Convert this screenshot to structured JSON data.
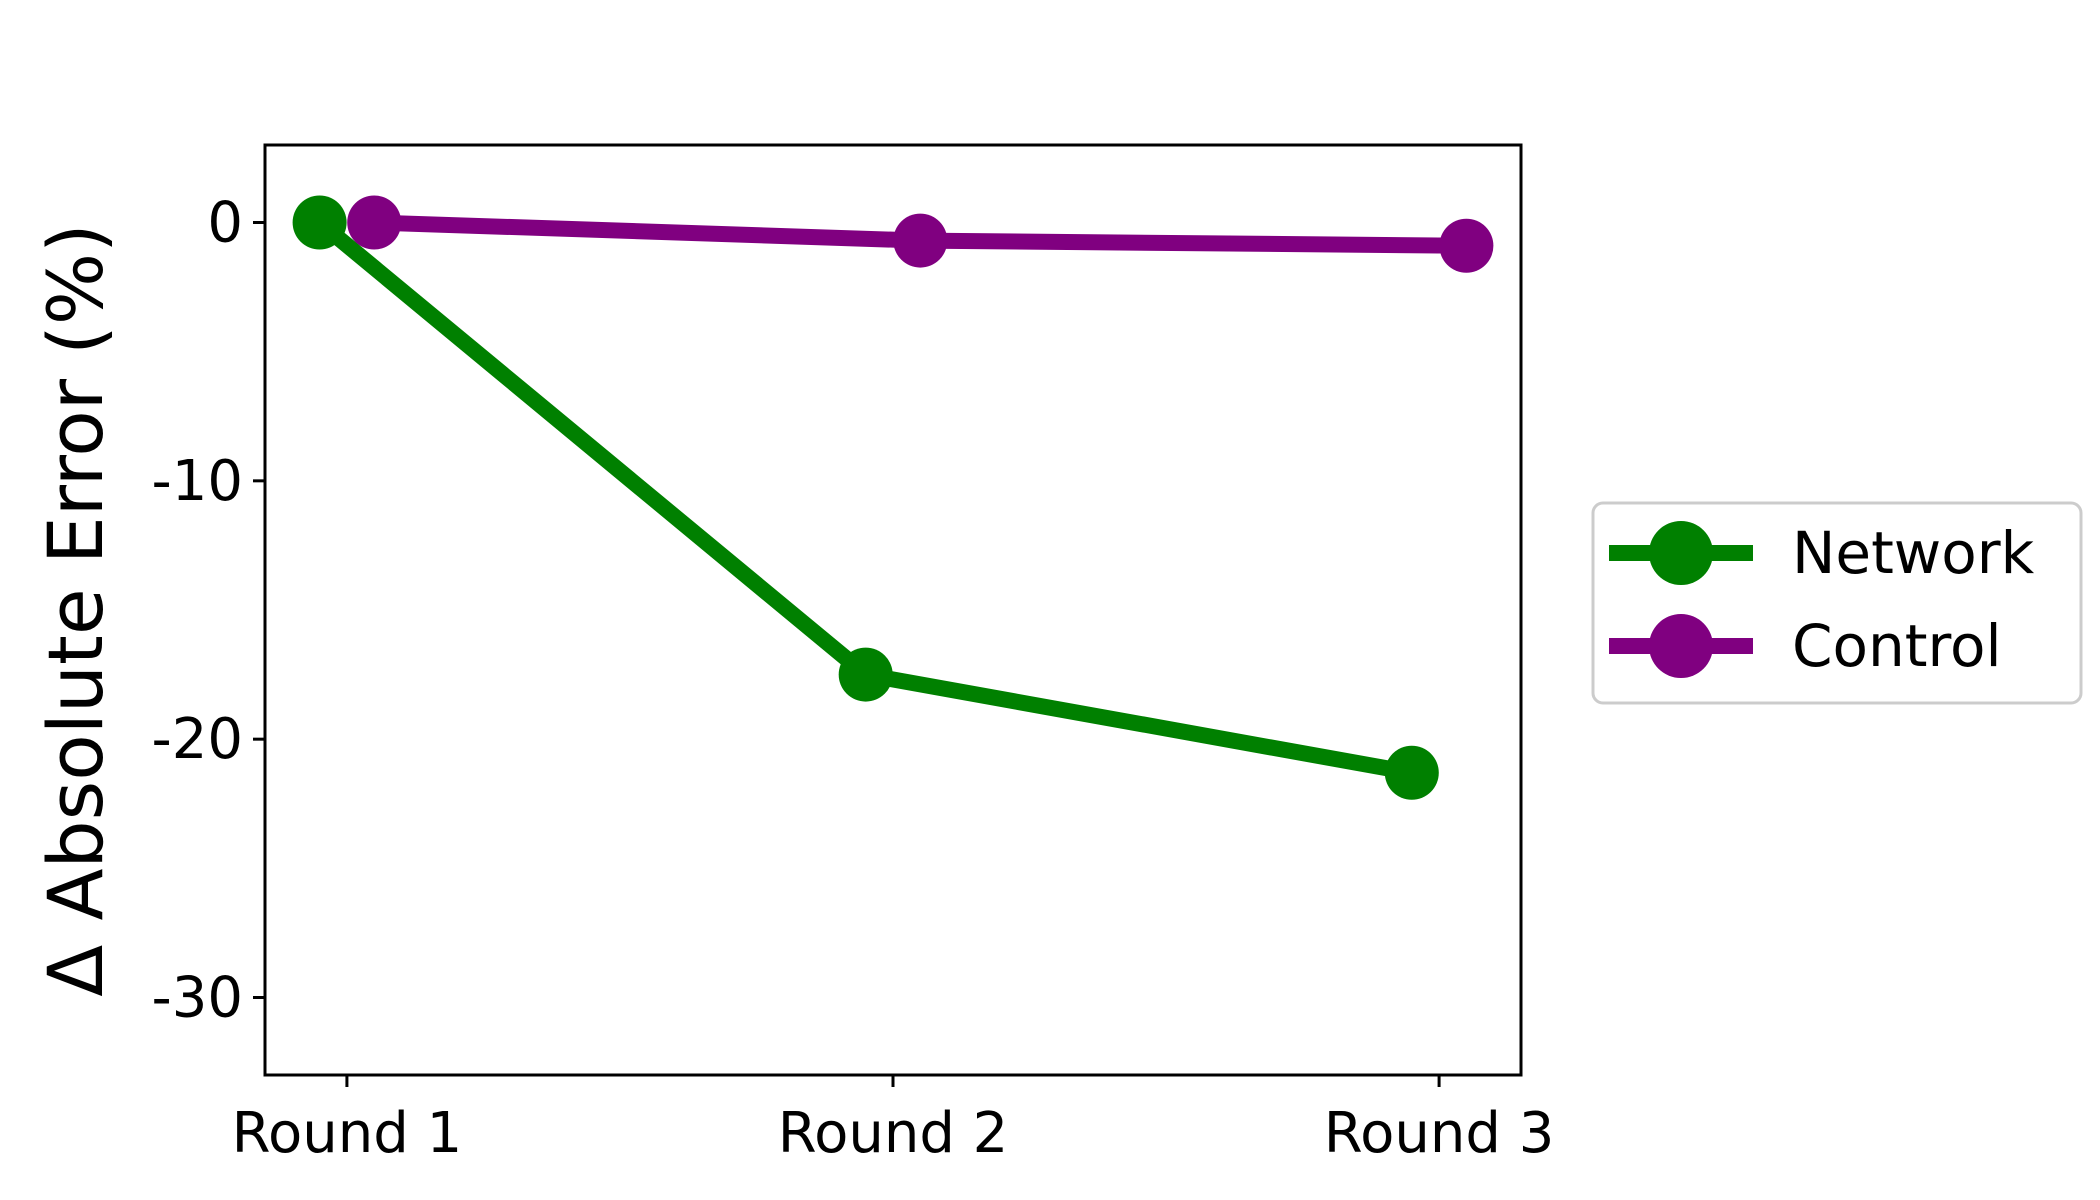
{
  "chart_data": {
    "type": "line",
    "categories": [
      "Round 1",
      "Round 2",
      "Round 3"
    ],
    "xlabel": "",
    "ylabel": "Δ Absolute Error (%)",
    "ylim": [
      -33,
      3
    ],
    "yticks": [
      0,
      -10,
      -20,
      -30
    ],
    "grid": false,
    "legend_position": "right",
    "series": [
      {
        "name": "Network",
        "color": "#008000",
        "values": [
          0,
          -17.5,
          -21.3
        ],
        "x_offset": -0.05
      },
      {
        "name": "Control",
        "color": "#800080",
        "values": [
          0,
          -0.7,
          -0.9
        ],
        "x_offset": 0.05
      }
    ]
  }
}
